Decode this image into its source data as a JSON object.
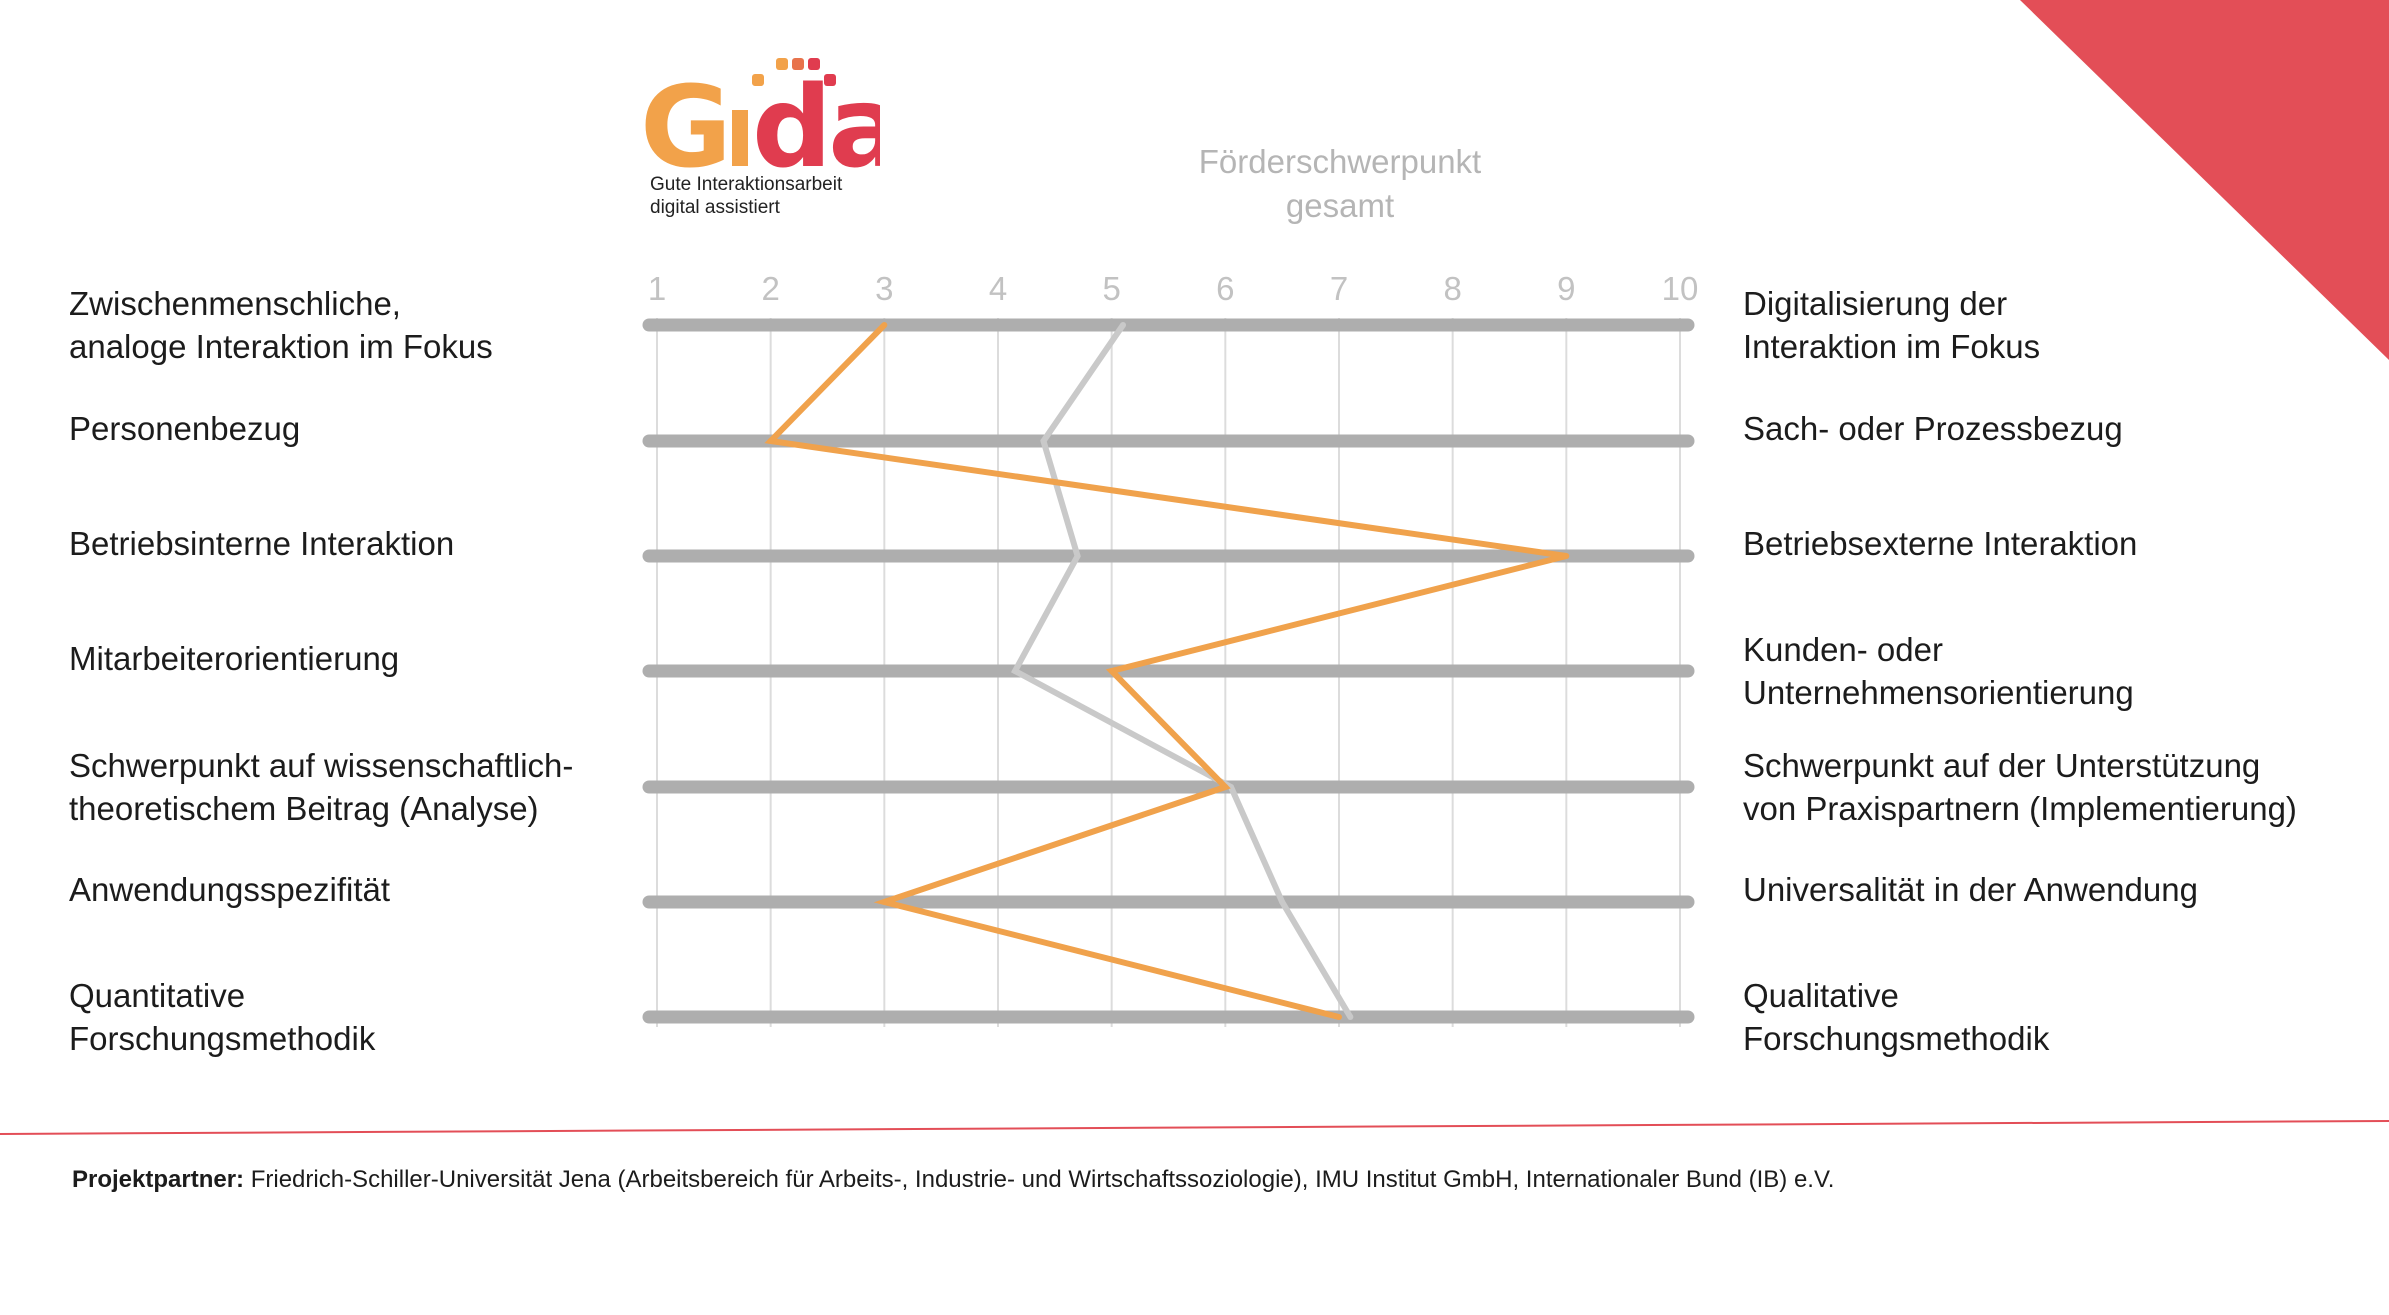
{
  "logo": {
    "word": "Gida",
    "subtitle_line1": "Gute Interaktionsarbeit",
    "subtitle_line2": "digital assistiert"
  },
  "chart_title_line1": "Förderschwerpunkt",
  "chart_title_line2": "gesamt",
  "colors": {
    "accent_red": "#e34e57",
    "series_orange": "#f0a24c",
    "series_grey": "#c9c9c9",
    "track_grey": "#aeaeae",
    "gridline": "#dcdcdc",
    "tick_label": "#c2c2c2",
    "logo_orange": "#f2a24a",
    "logo_red": "#e03c4f"
  },
  "chart_data": {
    "type": "line",
    "xlim": [
      1,
      10
    ],
    "x_ticks": [
      "1",
      "2",
      "3",
      "4",
      "5",
      "6",
      "7",
      "8",
      "9",
      "10"
    ],
    "grid": true,
    "dimensions": [
      {
        "left": [
          "Zwischenmenschliche,",
          "analoge Interaktion im Fokus"
        ],
        "right": [
          "Digitalisierung der",
          "Interaktion im Fokus"
        ]
      },
      {
        "left": [
          "Personenbezug"
        ],
        "right": [
          "Sach- oder Prozessbezug"
        ]
      },
      {
        "left": [
          "Betriebsinterne Interaktion"
        ],
        "right": [
          "Betriebsexterne Interaktion"
        ]
      },
      {
        "left": [
          "Mitarbeiterorientierung"
        ],
        "right": [
          "Kunden- oder",
          "Unternehmensorientierung"
        ]
      },
      {
        "left": [
          "Schwerpunkt auf wissenschaftlich-",
          "theoretischem Beitrag (Analyse)"
        ],
        "right": [
          "Schwerpunkt auf der Unterstützung",
          "von Praxispartnern (Implementierung)"
        ]
      },
      {
        "left": [
          "Anwendungsspezifität"
        ],
        "right": [
          "Universalität in der Anwendung"
        ]
      },
      {
        "left": [
          "Quantitative",
          "Forschungsmethodik"
        ],
        "right": [
          "Qualitative",
          "Forschungsmethodik"
        ]
      }
    ],
    "series": [
      {
        "color": "#f0a24c",
        "values": [
          3,
          2,
          9,
          5,
          6,
          3,
          7
        ]
      },
      {
        "color": "#c9c9c9",
        "values": [
          5.1,
          4.4,
          4.7,
          4.15,
          6.05,
          6.5,
          7.1
        ]
      }
    ]
  },
  "footer": {
    "label": "Projektpartner:",
    "text": " Friedrich-Schiller-Universität Jena (Arbeitsbereich für Arbeits-, Industrie- und Wirtschaftssoziologie), IMU Institut GmbH, Internationaler Bund (IB) e.V."
  }
}
